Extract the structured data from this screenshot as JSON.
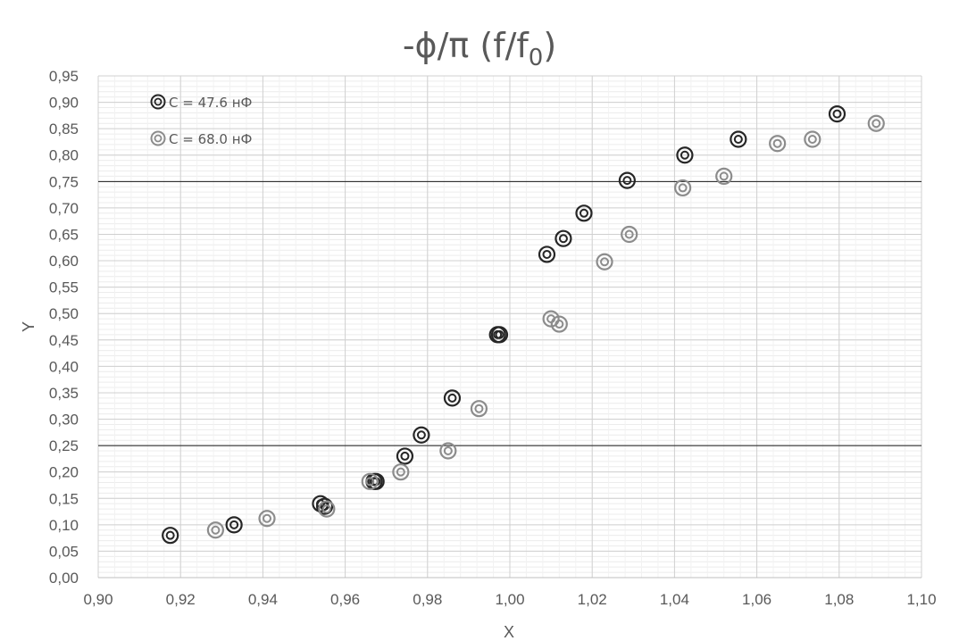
{
  "chart_data": {
    "type": "scatter",
    "title": {
      "main": "-ϕ/π (f/f",
      "subscript": "0",
      "close": ")"
    },
    "xlabel": "X",
    "ylabel": "Y",
    "xlim": [
      0.9,
      1.1
    ],
    "ylim": [
      0.0,
      0.95
    ],
    "x_ticks": [
      "0,90",
      "0,92",
      "0,94",
      "0,96",
      "0,98",
      "1,00",
      "1,02",
      "1,04",
      "1,06",
      "1,08",
      "1,10"
    ],
    "y_ticks": [
      "0,00",
      "0,05",
      "0,10",
      "0,15",
      "0,20",
      "0,25",
      "0,30",
      "0,35",
      "0,40",
      "0,45",
      "0,50",
      "0,55",
      "0,60",
      "0,65",
      "0,70",
      "0,75",
      "0,80",
      "0,85",
      "0,90",
      "0,95"
    ],
    "grid": true,
    "legend_position": "top-left",
    "reference_lines_y": [
      0.25,
      0.75
    ],
    "series": [
      {
        "name": "C = 47.6 нФ",
        "color": "#262626",
        "points": [
          [
            0.9175,
            0.08
          ],
          [
            0.933,
            0.1
          ],
          [
            0.954,
            0.14
          ],
          [
            0.955,
            0.135
          ],
          [
            0.967,
            0.182
          ],
          [
            0.9675,
            0.182
          ],
          [
            0.9745,
            0.23
          ],
          [
            0.9785,
            0.27
          ],
          [
            0.986,
            0.34
          ],
          [
            0.997,
            0.46
          ],
          [
            0.9975,
            0.46
          ],
          [
            1.009,
            0.612
          ],
          [
            1.013,
            0.642
          ],
          [
            1.018,
            0.69
          ],
          [
            1.0285,
            0.752
          ],
          [
            1.0425,
            0.8
          ],
          [
            1.0555,
            0.83
          ],
          [
            1.0795,
            0.878
          ]
        ]
      },
      {
        "name": "C = 68.0 нФ",
        "color": "#8c8c8c",
        "points": [
          [
            0.9285,
            0.09
          ],
          [
            0.941,
            0.112
          ],
          [
            0.9555,
            0.13
          ],
          [
            0.966,
            0.182
          ],
          [
            0.9735,
            0.2
          ],
          [
            0.985,
            0.24
          ],
          [
            0.9925,
            0.32
          ],
          [
            1.01,
            0.49
          ],
          [
            1.012,
            0.48
          ],
          [
            1.023,
            0.598
          ],
          [
            1.029,
            0.65
          ],
          [
            1.042,
            0.738
          ],
          [
            1.052,
            0.76
          ],
          [
            1.065,
            0.822
          ],
          [
            1.0735,
            0.83
          ],
          [
            1.089,
            0.86
          ]
        ]
      }
    ]
  }
}
